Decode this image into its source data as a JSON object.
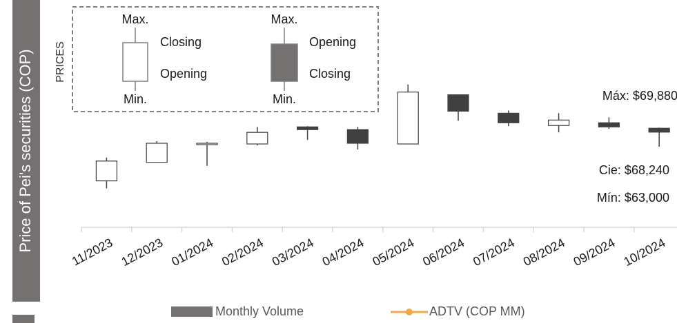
{
  "chart_data": {
    "type": "candlestick",
    "y_axis_title": "Price of Pei's securities (COP)",
    "side_label": "PRICES",
    "categories": [
      "11/2023",
      "12/2023",
      "01/2024",
      "02/2024",
      "03/2024",
      "04/2024",
      "05/2024",
      "06/2024",
      "07/2024",
      "08/2024",
      "09/2024",
      "10/2024"
    ],
    "open": [
      50700,
      57350,
      63860,
      63980,
      70120,
      69140,
      63980,
      81670,
      75040,
      70620,
      71600,
      69630
    ],
    "high": [
      59070,
      64970,
      64720,
      70120,
      70370,
      70120,
      85360,
      81670,
      76020,
      75040,
      73570,
      69880
    ],
    "low": [
      48010,
      57350,
      56120,
      63490,
      65460,
      62020,
      63980,
      72340,
      70370,
      68160,
      69390,
      63000
    ],
    "close": [
      57840,
      64230,
      64230,
      68160,
      69140,
      64230,
      82660,
      75780,
      71600,
      72580,
      70120,
      68240
    ],
    "up_color": "#ffffff",
    "down_color": "#404040",
    "ylim": [
      34000,
      91000
    ],
    "annotations": [
      "Máx: $69,880",
      "Cie: $68,240",
      "Mín: $63,000"
    ],
    "key": {
      "up": {
        "max": "Max.",
        "top": "Closing",
        "bottom": "Opening",
        "min": "Min."
      },
      "down": {
        "max": "Max.",
        "top": "Opening",
        "bottom": "Closing",
        "min": "Min."
      }
    },
    "legend": [
      {
        "name": "Monthly Volume",
        "color": "#767171"
      },
      {
        "name": "ADTV (COP MM)",
        "color": "#f4a74a"
      }
    ]
  }
}
